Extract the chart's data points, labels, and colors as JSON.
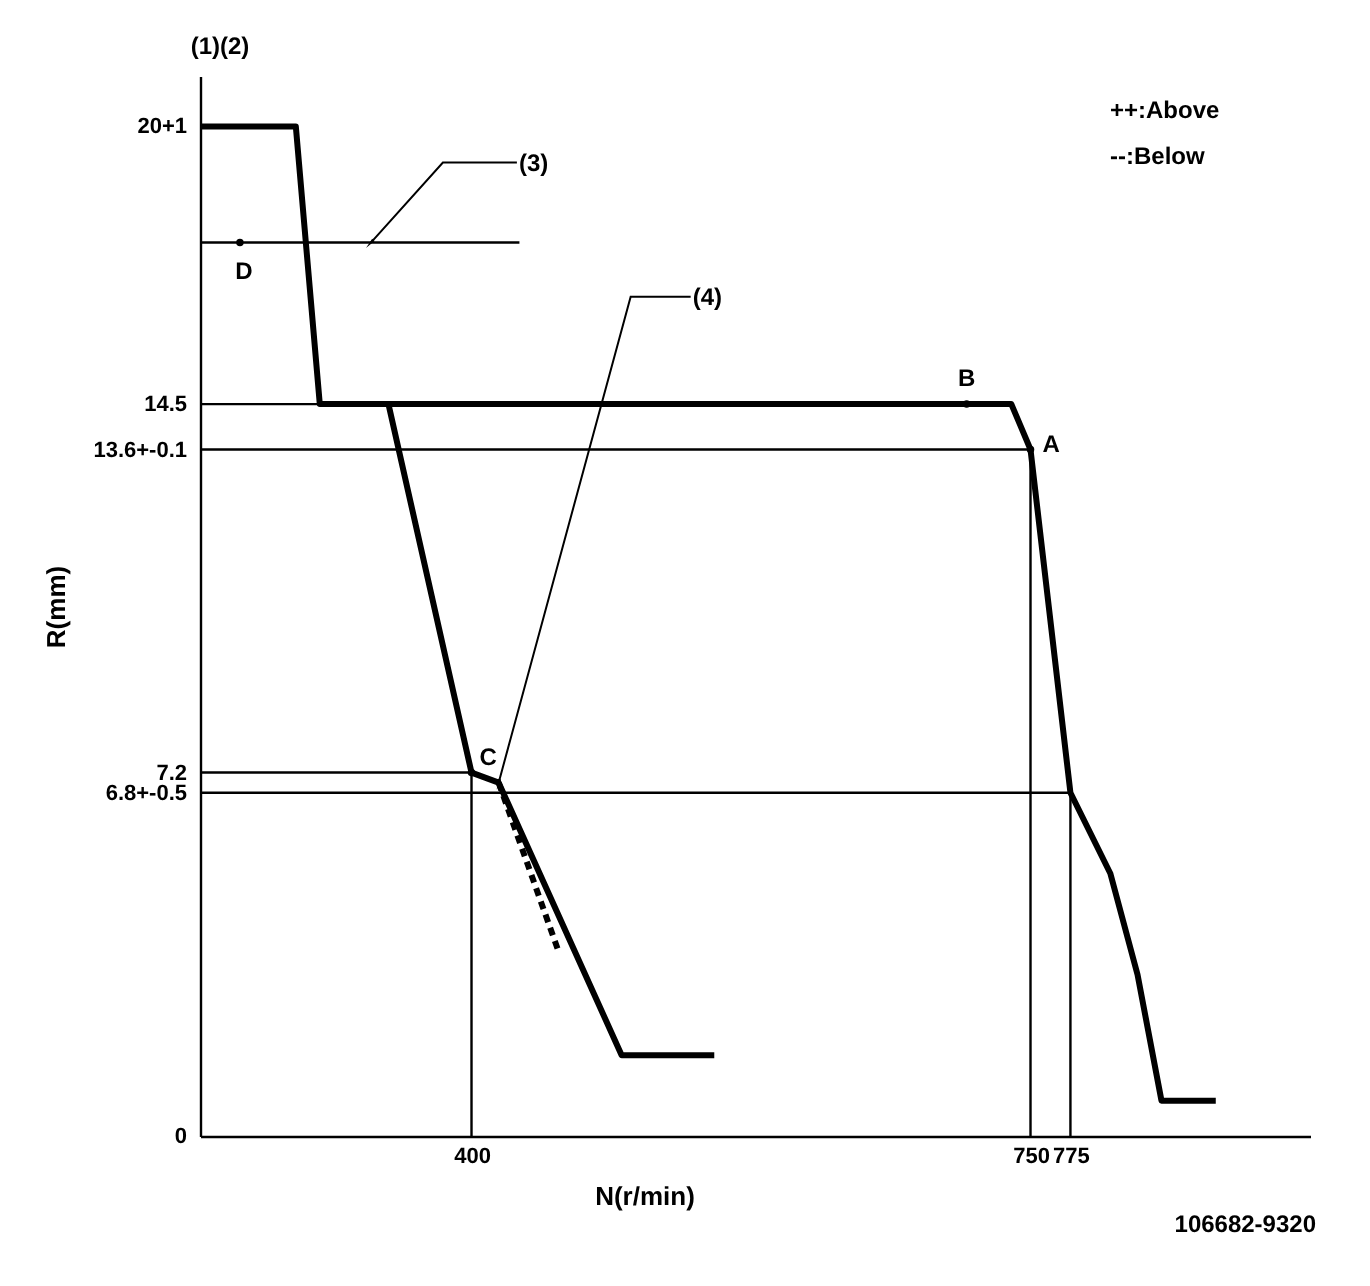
{
  "chart_data": {
    "type": "line",
    "xlabel": "N(r/min)",
    "ylabel": "R(mm)",
    "xlim": [
      230,
      925
    ],
    "xticks": [
      400,
      750,
      775
    ],
    "ylim": [
      0,
      21
    ],
    "yticks": [
      0,
      {
        "value": 6.8,
        "label": "6.8+-0.5"
      },
      7.2,
      {
        "value": 13.6,
        "label": "13.6+-0.1"
      },
      14.5,
      {
        "value": 20,
        "label": "20+1"
      }
    ],
    "series": [
      {
        "type": "line",
        "color": "#000000",
        "x": [
          230,
          290,
          305,
          738,
          750,
          775,
          800,
          817,
          832,
          866
        ],
        "values": [
          20,
          20,
          14.5,
          14.5,
          13.6,
          6.8,
          5.2,
          3.2,
          0.7,
          0.7
        ]
      },
      {
        "type": "line",
        "color": "#000000",
        "x": [
          348,
          400,
          417,
          494,
          552
        ],
        "values": [
          14.5,
          7.2,
          7.0,
          1.6,
          1.6
        ]
      },
      {
        "type": "line",
        "color": "#000000",
        "line_style": "dashed",
        "x": [
          417,
          454
        ],
        "values": [
          7.0,
          3.7
        ]
      },
      {
        "type": "line",
        "color": "#000000",
        "x": [
          230,
          430
        ],
        "values": [
          17.7,
          17.7
        ]
      },
      {
        "type": "line",
        "color": "#000000",
        "x": [
          230,
          305
        ],
        "values": [
          14.5,
          14.5
        ]
      },
      {
        "type": "line",
        "color": "#000000",
        "x": [
          230,
          750,
          750
        ],
        "values": [
          13.6,
          13.6,
          0
        ]
      },
      {
        "type": "line",
        "color": "#000000",
        "x": [
          230,
          400,
          400
        ],
        "values": [
          7.2,
          7.2,
          0
        ]
      },
      {
        "type": "line",
        "color": "#000000",
        "x": [
          230,
          775,
          775
        ],
        "values": [
          6.8,
          6.8,
          0
        ]
      }
    ],
    "annotations": [
      "(1)(2)",
      "++:Above",
      "--:Below",
      {
        "text": "A",
        "x": 750,
        "y": 13.6
      },
      {
        "text": "B",
        "x": 710,
        "y": 14.5
      },
      {
        "text": "C",
        "x": 400,
        "y": 7.2
      },
      {
        "text": "D",
        "x": 255,
        "y": 17.7
      },
      {
        "text": "(3)",
        "x": 337,
        "y": 17.7
      },
      {
        "text": "(4)",
        "x": 417,
        "y": 7.0
      },
      "106682-9320"
    ]
  }
}
